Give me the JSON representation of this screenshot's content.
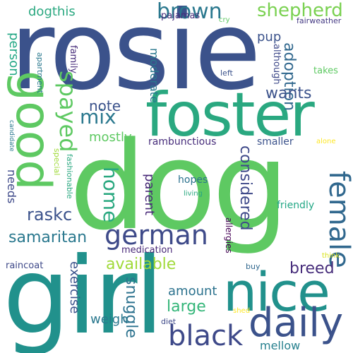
{
  "words": [
    {
      "text": "rosie",
      "color": "#3b528b"
    },
    {
      "text": "dog",
      "color": "#5ec962"
    },
    {
      "text": "girl",
      "color": "#21918c"
    },
    {
      "text": "foster",
      "color": "#2aa880"
    },
    {
      "text": "nice",
      "color": "#21918c"
    },
    {
      "text": "good",
      "color": "#5ec962"
    },
    {
      "text": "daily",
      "color": "#3b528b"
    },
    {
      "text": "black",
      "color": "#3e4989"
    },
    {
      "text": "female",
      "color": "#31688e"
    },
    {
      "text": "german",
      "color": "#3e4a89"
    },
    {
      "text": "brown",
      "color": "#2a788e"
    },
    {
      "text": "spayed",
      "color": "#5ec962"
    },
    {
      "text": "shepherd",
      "color": "#7ad151"
    },
    {
      "text": "mix",
      "color": "#2a788e"
    },
    {
      "text": "home",
      "color": "#2aa880"
    },
    {
      "text": "available",
      "color": "#a0da39"
    },
    {
      "text": "samaritan",
      "color": "#2a788e"
    },
    {
      "text": "raskc",
      "color": "#3b528b"
    },
    {
      "text": "breed",
      "color": "#472d7b"
    },
    {
      "text": "large",
      "color": "#34b679"
    },
    {
      "text": "considered",
      "color": "#3e4989"
    },
    {
      "text": "snuggle",
      "color": "#2c728e"
    },
    {
      "text": "adoption",
      "color": "#31688e"
    },
    {
      "text": "wants",
      "color": "#3b528b"
    },
    {
      "text": "note",
      "color": "#3b528b"
    },
    {
      "text": "mostly",
      "color": "#5ec962"
    },
    {
      "text": "dogthis",
      "color": "#2aa880"
    },
    {
      "text": "pup",
      "color": "#3b528b"
    },
    {
      "text": "person",
      "color": "#22a785"
    },
    {
      "text": "parent",
      "color": "#482878"
    },
    {
      "text": "weigh",
      "color": "#2a788e"
    },
    {
      "text": "amount",
      "color": "#2c728e"
    },
    {
      "text": "exercise",
      "color": "#3b528b"
    },
    {
      "text": "mellow",
      "color": "#27808e"
    },
    {
      "text": "moderate",
      "color": "#2a788e"
    },
    {
      "text": "needs",
      "color": "#3e4989"
    },
    {
      "text": "rambunctious",
      "color": "#472d7b"
    },
    {
      "text": "smaller",
      "color": "#3b528b"
    },
    {
      "text": "hopes",
      "color": "#2c728e"
    },
    {
      "text": "friendly",
      "color": "#22a785"
    },
    {
      "text": "medication",
      "color": "#482878"
    },
    {
      "text": "raincoat",
      "color": "#3e4989"
    },
    {
      "text": "pajamas",
      "color": "#472d7b"
    },
    {
      "text": "fairweather",
      "color": "#443983"
    },
    {
      "text": "although",
      "color": "#3e4989"
    },
    {
      "text": "takes",
      "color": "#5ec962"
    },
    {
      "text": "family",
      "color": "#472d7b"
    },
    {
      "text": "apartment",
      "color": "#2a788e"
    },
    {
      "text": "left",
      "color": "#3b528b"
    },
    {
      "text": "special",
      "color": "#a0da39"
    },
    {
      "text": "fashionable",
      "color": "#2aa880"
    },
    {
      "text": "candidate",
      "color": "#2a788e"
    },
    {
      "text": "living",
      "color": "#2aa880"
    },
    {
      "text": "alone",
      "color": "#fde725"
    },
    {
      "text": "cry",
      "color": "#5ec962"
    },
    {
      "text": "allergies",
      "color": "#440154"
    },
    {
      "text": "buy",
      "color": "#31688e"
    },
    {
      "text": "think",
      "color": "#d8e219"
    },
    {
      "text": "diet",
      "color": "#3e4989"
    },
    {
      "text": "shed",
      "color": "#fde725"
    }
  ]
}
